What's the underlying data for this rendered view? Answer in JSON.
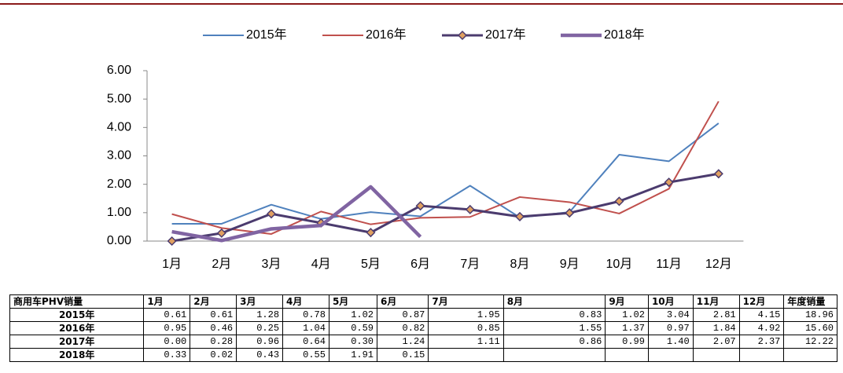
{
  "chart_data": {
    "type": "line",
    "categories": [
      "1月",
      "2月",
      "3月",
      "4月",
      "5月",
      "6月",
      "7月",
      "8月",
      "9月",
      "10月",
      "11月",
      "12月"
    ],
    "ylim": [
      0,
      6
    ],
    "yticks": [
      {
        "value": 0,
        "label": "0.00"
      },
      {
        "value": 1,
        "label": "1.00"
      },
      {
        "value": 2,
        "label": "2.00"
      },
      {
        "value": 3,
        "label": "3.00"
      },
      {
        "value": 4,
        "label": "4.00"
      },
      {
        "value": 5,
        "label": "5.00"
      },
      {
        "value": 6,
        "label": "6.00"
      }
    ],
    "legend": "top",
    "series": [
      {
        "name": "2015年",
        "color": "#4f81bd",
        "width": 2,
        "marker": false,
        "values": [
          0.61,
          0.61,
          1.28,
          0.78,
          1.02,
          0.87,
          1.95,
          0.83,
          1.02,
          3.04,
          2.81,
          4.15
        ],
        "value_labels": [
          "0.61",
          "0.61",
          "1.28",
          "0.78",
          "1.02",
          "0.87",
          "1.95",
          "0.83",
          "1.02",
          "3.04",
          "2.81",
          "4.15"
        ],
        "total": 18.96,
        "total_label": "18.96"
      },
      {
        "name": "2016年",
        "color": "#c0504d",
        "width": 2,
        "marker": false,
        "values": [
          0.95,
          0.46,
          0.25,
          1.04,
          0.59,
          0.82,
          0.85,
          1.55,
          1.37,
          0.97,
          1.84,
          4.92
        ],
        "value_labels": [
          "0.95",
          "0.46",
          "0.25",
          "1.04",
          "0.59",
          "0.82",
          "0.85",
          "1.55",
          "1.37",
          "0.97",
          "1.84",
          "4.92"
        ],
        "total": 15.6,
        "total_label": "15.60"
      },
      {
        "name": "2017年",
        "color": "#4b3b6e",
        "width": 3,
        "marker": true,
        "values": [
          0,
          0.28,
          0.96,
          0.64,
          0.3,
          1.24,
          1.11,
          0.86,
          0.99,
          1.4,
          2.07,
          2.37
        ],
        "value_labels": [
          "0.00",
          "0.28",
          "0.96",
          "0.64",
          "0.30",
          "1.24",
          "1.11",
          "0.86",
          "0.99",
          "1.40",
          "2.07",
          "2.37"
        ],
        "total": 12.22,
        "total_label": "12.22"
      },
      {
        "name": "2018年",
        "color": "#8064a2",
        "width": 4.5,
        "marker": false,
        "values": [
          0.33,
          0.02,
          0.43,
          0.55,
          1.91,
          0.15,
          null,
          null,
          null,
          null,
          null,
          null
        ],
        "value_labels": [
          "0.33",
          "0.02",
          "0.43",
          "0.55",
          "1.91",
          "0.15",
          null,
          null,
          null,
          null,
          null,
          null
        ]
      }
    ],
    "table": {
      "corner": "商用车PHV销量",
      "total_header": "年度销量"
    }
  }
}
